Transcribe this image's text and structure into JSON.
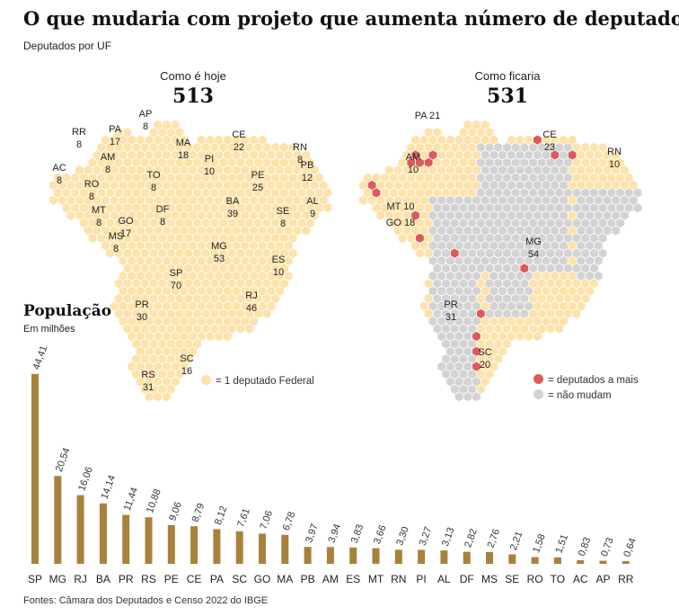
{
  "title": "O que mudaria com projeto que aumenta número de deputados",
  "subtitle": "Deputados por UF",
  "maps": {
    "today": {
      "label": "Como é hoje",
      "total": "513"
    },
    "future": {
      "label": "Como ficaria",
      "total": "531"
    }
  },
  "legend": {
    "one_deputy": "= 1 deputado Federal",
    "more": "= deputados a mais",
    "same": "= não mudam"
  },
  "colors": {
    "hex": "#fde2aa",
    "hex_grey": "#d3d3d3",
    "extra": "#dd5a5a",
    "bar": "#a8823b",
    "border": "#8a7d6a"
  },
  "today_labels": [
    {
      "uf": "RR",
      "n": "8"
    },
    {
      "uf": "PA",
      "n": "17"
    },
    {
      "uf": "AP",
      "n": "8"
    },
    {
      "uf": "AM",
      "n": "8"
    },
    {
      "uf": "AC",
      "n": "8"
    },
    {
      "uf": "RO",
      "n": "8"
    },
    {
      "uf": "MT",
      "n": "8"
    },
    {
      "uf": "MA",
      "n": "18"
    },
    {
      "uf": "CE",
      "n": "22"
    },
    {
      "uf": "PI",
      "n": "10"
    },
    {
      "uf": "RN",
      "n": "8"
    },
    {
      "uf": "PB",
      "n": "12"
    },
    {
      "uf": "PE",
      "n": "25"
    },
    {
      "uf": "AL",
      "n": "9"
    },
    {
      "uf": "SE",
      "n": "8"
    },
    {
      "uf": "TO",
      "n": "8"
    },
    {
      "uf": "DF",
      "n": "8"
    },
    {
      "uf": "BA",
      "n": "39"
    },
    {
      "uf": "GO",
      "n": "17"
    },
    {
      "uf": "MS",
      "n": "8"
    },
    {
      "uf": "MG",
      "n": "53"
    },
    {
      "uf": "ES",
      "n": "10"
    },
    {
      "uf": "SP",
      "n": "70"
    },
    {
      "uf": "RJ",
      "n": "46"
    },
    {
      "uf": "PR",
      "n": "30"
    },
    {
      "uf": "SC",
      "n": "16"
    },
    {
      "uf": "RS",
      "n": "31"
    }
  ],
  "future_labels": [
    {
      "uf": "PA",
      "n": "21"
    },
    {
      "uf": "CE",
      "n": "23"
    },
    {
      "uf": "RN",
      "n": "10"
    },
    {
      "uf": "AM",
      "n": "10"
    },
    {
      "uf": "MT",
      "n": "10"
    },
    {
      "uf": "GO",
      "n": "18"
    },
    {
      "uf": "MG",
      "n": "54"
    },
    {
      "uf": "PR",
      "n": "31"
    },
    {
      "uf": "SC",
      "n": "20"
    }
  ],
  "population": {
    "title": "População",
    "subtitle": "Em milhões"
  },
  "chart_data": {
    "type": "bar",
    "title": "População",
    "ylabel": "Em milhões",
    "categories": [
      "SP",
      "MG",
      "RJ",
      "BA",
      "PR",
      "RS",
      "PE",
      "CE",
      "PA",
      "SC",
      "GO",
      "MA",
      "PB",
      "AM",
      "ES",
      "MT",
      "RN",
      "PI",
      "AL",
      "DF",
      "MS",
      "SE",
      "RO",
      "TO",
      "AC",
      "AP",
      "RR"
    ],
    "values": [
      44.41,
      20.54,
      16.06,
      14.14,
      11.44,
      10.88,
      9.06,
      8.79,
      8.12,
      7.61,
      7.06,
      6.78,
      3.97,
      3.94,
      3.83,
      3.66,
      3.3,
      3.27,
      3.13,
      2.82,
      2.76,
      2.21,
      1.58,
      1.51,
      0.83,
      0.73,
      0.64
    ],
    "value_labels": [
      "44,41",
      "20,54",
      "16,06",
      "14,14",
      "11,44",
      "10,88",
      "9,06",
      "8,79",
      "8,12",
      "7,61",
      "7,06",
      "6,78",
      "3,97",
      "3,94",
      "3,83",
      "3,66",
      "3,30",
      "3,27",
      "3,13",
      "2,82",
      "2,76",
      "2,21",
      "1,58",
      "1,51",
      "0,83",
      "0,73",
      "0,64"
    ],
    "ylim": [
      0,
      45
    ]
  },
  "source": "Fontes: Câmara dos Deputados e Censo 2022 do IBGE"
}
